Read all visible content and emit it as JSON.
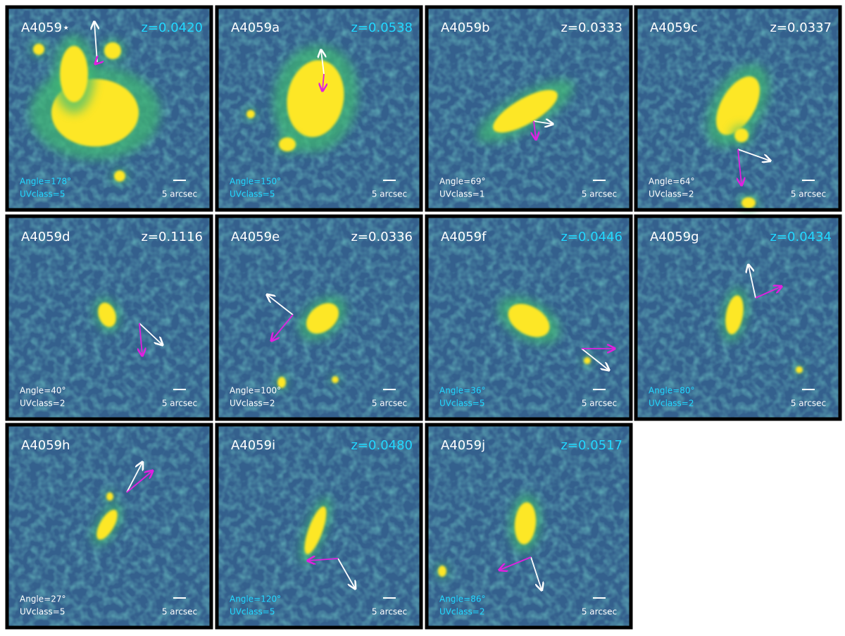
{
  "panels": [
    {
      "name": "A4059⋆",
      "z": "z=0.0420",
      "angle": "Angle=178°",
      "uvclass": "UVclass=5",
      "scale": "5 arcsec",
      "z_color": "#22d8ff",
      "info_color": "#22d8ff"
    },
    {
      "name": "A4059a",
      "z": "z=0.0538",
      "angle": "Angle=150°",
      "uvclass": "UVclass=5",
      "scale": "5 arcsec",
      "z_color": "#22d8ff",
      "info_color": "#22d8ff"
    },
    {
      "name": "A4059b",
      "z": "z=0.0333",
      "angle": "Angle=69°",
      "uvclass": "UVclass=1",
      "scale": "5 arcsec",
      "z_color": "#ffffff",
      "info_color": "#ffffff"
    },
    {
      "name": "A4059c",
      "z": "z=0.0337",
      "angle": "Angle=64°",
      "uvclass": "UVclass=2",
      "scale": "5 arcsec",
      "z_color": "#ffffff",
      "info_color": "#ffffff"
    },
    {
      "name": "A4059d",
      "z": "z=0.1116",
      "angle": "Angle=40°",
      "uvclass": "UVclass=2",
      "scale": "5 arcsec",
      "z_color": "#ffffff",
      "info_color": "#ffffff"
    },
    {
      "name": "A4059e",
      "z": "z=0.0336",
      "angle": "Angle=100°",
      "uvclass": "UVclass=2",
      "scale": "5 arcsec",
      "z_color": "#ffffff",
      "info_color": "#ffffff"
    },
    {
      "name": "A4059f",
      "z": "z=0.0446",
      "angle": "Angle=36°",
      "uvclass": "UVclass=5",
      "scale": "5 arcsec",
      "z_color": "#22d8ff",
      "info_color": "#22d8ff"
    },
    {
      "name": "A4059g",
      "z": "z=0.0434",
      "angle": "Angle=80°",
      "uvclass": "UVclass=2",
      "scale": "5 arcsec",
      "z_color": "#22d8ff",
      "info_color": "#22d8ff"
    },
    {
      "name": "A4059h",
      "angle": "Angle=27°",
      "uvclass": "UVclass=5",
      "scale": "5 arcsec",
      "info_color": "#ffffff"
    },
    {
      "name": "A4059i",
      "z": "z=0.0480",
      "angle": "Angle=120°",
      "uvclass": "UVclass=5",
      "scale": "5 arcsec",
      "z_color": "#22d8ff",
      "info_color": "#22d8ff"
    },
    {
      "name": "A4059j",
      "z": "z=0.0517",
      "angle": "Angle=86°",
      "uvclass": "UVclass=2",
      "scale": "5 arcsec",
      "z_color": "#22d8ff",
      "info_color": "#22d8ff"
    }
  ]
}
